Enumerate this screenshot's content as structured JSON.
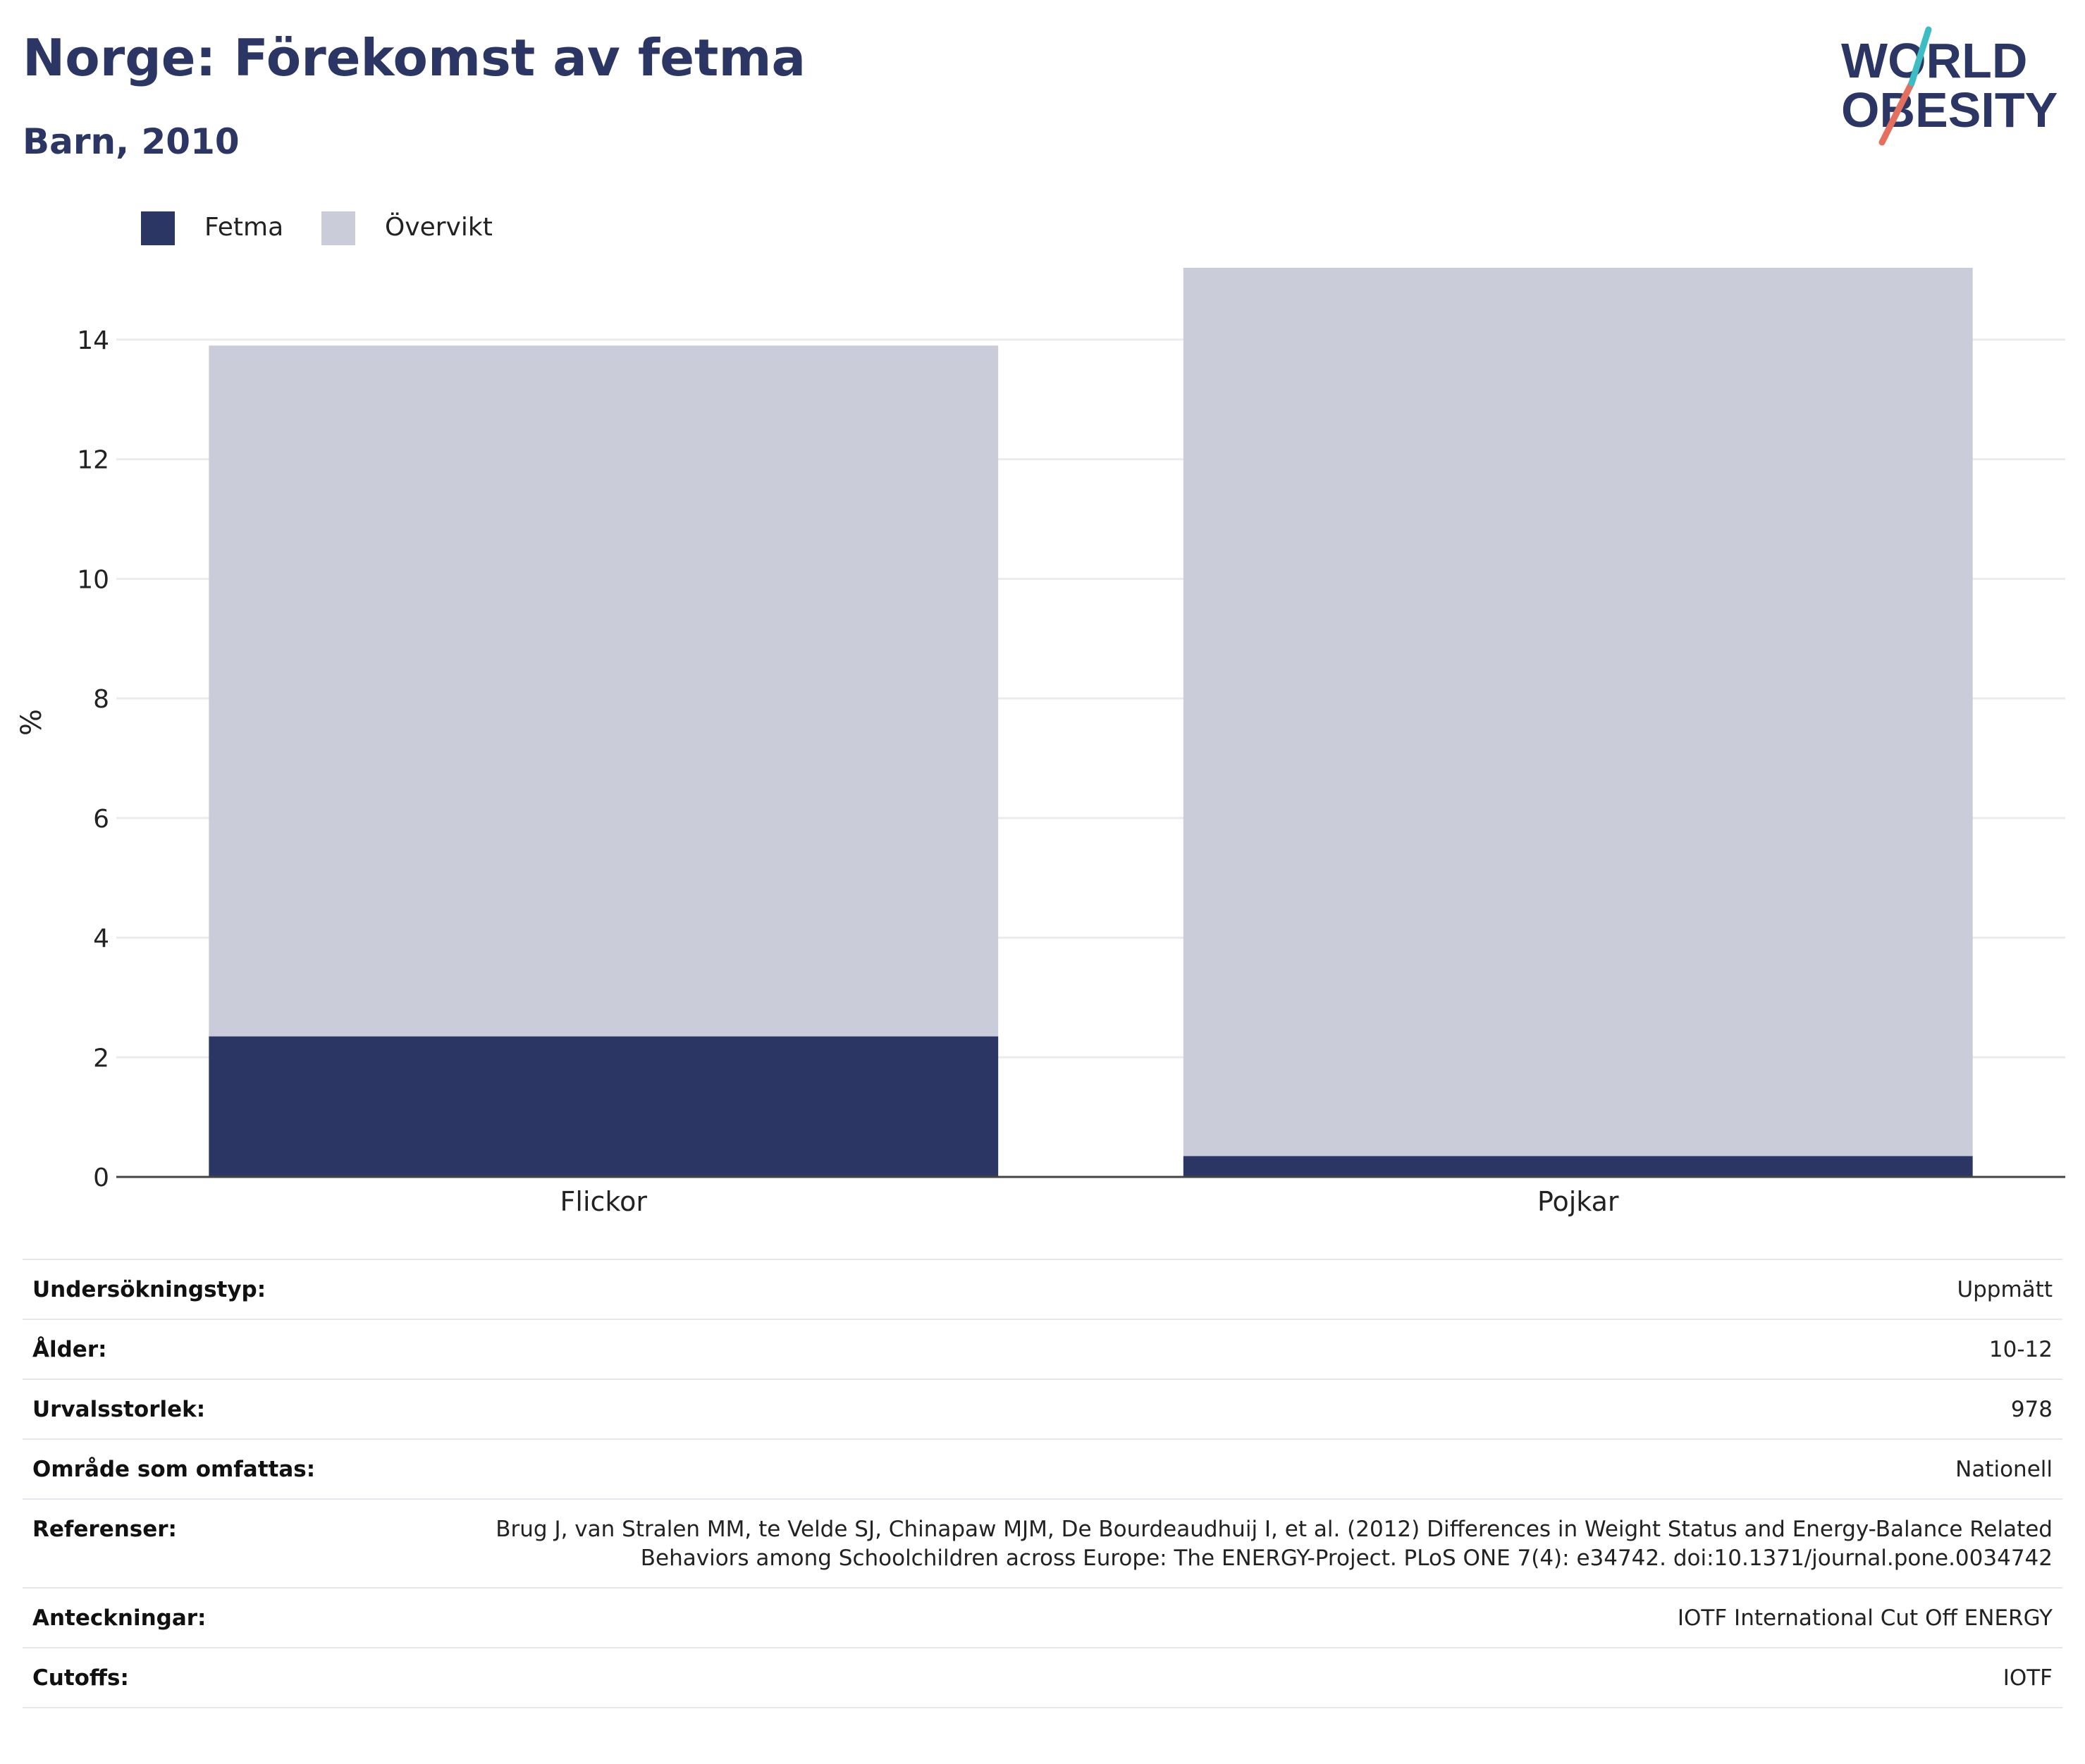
{
  "title": "Norge: Förekomst av fetma",
  "subtitle": "Barn, 2010",
  "logo": {
    "line1": "WORLD",
    "line2": "OBESITY"
  },
  "legend": [
    {
      "label": "Fetma",
      "color": "#2b3664"
    },
    {
      "label": "Övervikt",
      "color": "#cacdd9"
    }
  ],
  "chart_data": {
    "type": "bar",
    "stacked": true,
    "categories": [
      "Flickor",
      "Pojkar"
    ],
    "series": [
      {
        "name": "Fetma",
        "color": "#2b3664",
        "values": [
          2.35,
          0.35
        ]
      },
      {
        "name": "Övervikt",
        "color": "#cacdd9",
        "values": [
          11.55,
          14.85
        ]
      }
    ],
    "ylabel": "%",
    "ylim": [
      0,
      15.2
    ],
    "yticks": [
      0,
      2,
      4,
      6,
      8,
      10,
      12,
      14
    ],
    "grid": true,
    "legend_position": "top-left"
  },
  "meta": [
    {
      "key": "Undersökningstyp:",
      "value": "Uppmätt"
    },
    {
      "key": "Ålder:",
      "value": "10-12"
    },
    {
      "key": "Urvalsstorlek:",
      "value": "978"
    },
    {
      "key": "Område som omfattas:",
      "value": "Nationell"
    },
    {
      "key": "Referenser:",
      "value": "Brug J, van Stralen MM, te Velde SJ, Chinapaw MJM, De Bourdeaudhuij I, et al. (2012) Differences in Weight Status and Energy-Balance Related Behaviors among Schoolchildren across Europe: The ENERGY-Project. PLoS ONE 7(4): e34742. doi:10.1371/journal.pone.0034742"
    },
    {
      "key": "Anteckningar:",
      "value": "IOTF International Cut Off ENERGY"
    },
    {
      "key": "Cutoffs:",
      "value": "IOTF"
    }
  ]
}
